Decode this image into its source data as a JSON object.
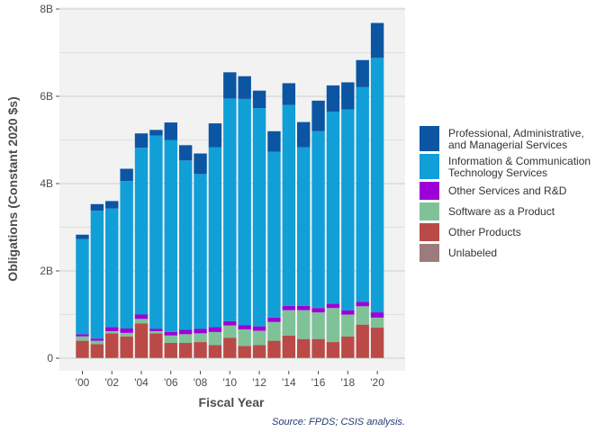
{
  "chart_data": {
    "type": "bar",
    "stacked": true,
    "xlabel": "Fiscal Year",
    "ylabel": "Obligations (Constant 2020 $s)",
    "caption": "Source: FPDS; CSIS analysis.",
    "ylim": [
      0,
      8
    ],
    "y_ticks": [
      0,
      2,
      4,
      6,
      8
    ],
    "y_tick_labels": [
      "0",
      "2B",
      "4B",
      "6B",
      "8B"
    ],
    "x_tick_labels": [
      {
        "year": 2000,
        "label": "'00"
      },
      {
        "year": 2002,
        "label": "'02"
      },
      {
        "year": 2004,
        "label": "'04"
      },
      {
        "year": 2006,
        "label": "'06"
      },
      {
        "year": 2008,
        "label": "'08"
      },
      {
        "year": 2010,
        "label": "'10"
      },
      {
        "year": 2012,
        "label": "'12"
      },
      {
        "year": 2014,
        "label": "'14"
      },
      {
        "year": 2016,
        "label": "'16"
      },
      {
        "year": 2018,
        "label": "'18"
      },
      {
        "year": 2020,
        "label": "'20"
      }
    ],
    "grid": true,
    "legend_position": "right",
    "unit": "billions of constant 2020 dollars",
    "categories": [
      2000,
      2001,
      2002,
      2003,
      2004,
      2005,
      2006,
      2007,
      2008,
      2009,
      2010,
      2011,
      2012,
      2013,
      2014,
      2015,
      2016,
      2017,
      2018,
      2019,
      2020
    ],
    "series": [
      {
        "name": "Unlabeled",
        "color": "#9b7b7b",
        "values": [
          0.02,
          0.02,
          0.02,
          0.02,
          0.02,
          0.02,
          0.02,
          0.02,
          0.02,
          0.02,
          0.02,
          0.02,
          0.02,
          0.02,
          0.02,
          0.02,
          0.02,
          0.02,
          0.02,
          0.02,
          0.02
        ]
      },
      {
        "name": "Other Products",
        "color": "#b94a48",
        "values": [
          0.38,
          0.3,
          0.55,
          0.48,
          0.78,
          0.55,
          0.33,
          0.33,
          0.35,
          0.28,
          0.45,
          0.26,
          0.28,
          0.38,
          0.5,
          0.42,
          0.42,
          0.35,
          0.48,
          0.75,
          0.68
        ]
      },
      {
        "name": "Software as a Product",
        "color": "#7fc297",
        "values": [
          0.1,
          0.08,
          0.05,
          0.08,
          0.1,
          0.05,
          0.17,
          0.2,
          0.2,
          0.3,
          0.28,
          0.38,
          0.33,
          0.43,
          0.58,
          0.66,
          0.61,
          0.78,
          0.5,
          0.42,
          0.23
        ]
      },
      {
        "name": "Other Services and R&D",
        "color": "#9d00d6",
        "values": [
          0.05,
          0.05,
          0.09,
          0.1,
          0.1,
          0.05,
          0.08,
          0.1,
          0.1,
          0.11,
          0.1,
          0.1,
          0.1,
          0.1,
          0.1,
          0.1,
          0.1,
          0.1,
          0.1,
          0.1,
          0.12
        ]
      },
      {
        "name": "Information & Communication Technology Services",
        "color": "#119fd7",
        "values": [
          2.18,
          2.93,
          2.72,
          3.38,
          3.82,
          4.43,
          4.4,
          3.88,
          3.55,
          4.12,
          5.1,
          5.18,
          5.0,
          3.8,
          4.6,
          3.63,
          4.05,
          4.4,
          4.6,
          4.92,
          5.83
        ]
      },
      {
        "name": "Professional, Administrative, and Managerial Services",
        "color": "#0b55a3",
        "values": [
          0.1,
          0.15,
          0.17,
          0.28,
          0.33,
          0.13,
          0.4,
          0.35,
          0.47,
          0.55,
          0.6,
          0.52,
          0.4,
          0.47,
          0.5,
          0.58,
          0.7,
          0.6,
          0.62,
          0.62,
          0.8
        ]
      }
    ],
    "legend": [
      {
        "series": "Professional, Administrative, and Managerial Services",
        "lines": [
          "Professional, Administrative,",
          "and Managerial Services"
        ],
        "color": "#0b55a3"
      },
      {
        "series": "Information & Communication Technology Services",
        "lines": [
          "Information & Communication",
          "Technology Services"
        ],
        "color": "#119fd7"
      },
      {
        "series": "Other Services and R&D",
        "lines": [
          "Other Services and R&D"
        ],
        "color": "#9d00d6"
      },
      {
        "series": "Software as a Product",
        "lines": [
          "Software as a Product"
        ],
        "color": "#7fc297"
      },
      {
        "series": "Other Products",
        "lines": [
          "Other Products"
        ],
        "color": "#b94a48"
      },
      {
        "series": "Unlabeled",
        "lines": [
          "Unlabeled"
        ],
        "color": "#9b7b7b"
      }
    ],
    "panel_background": "#f2f2f2",
    "grid_color": "#cfcfcf"
  }
}
